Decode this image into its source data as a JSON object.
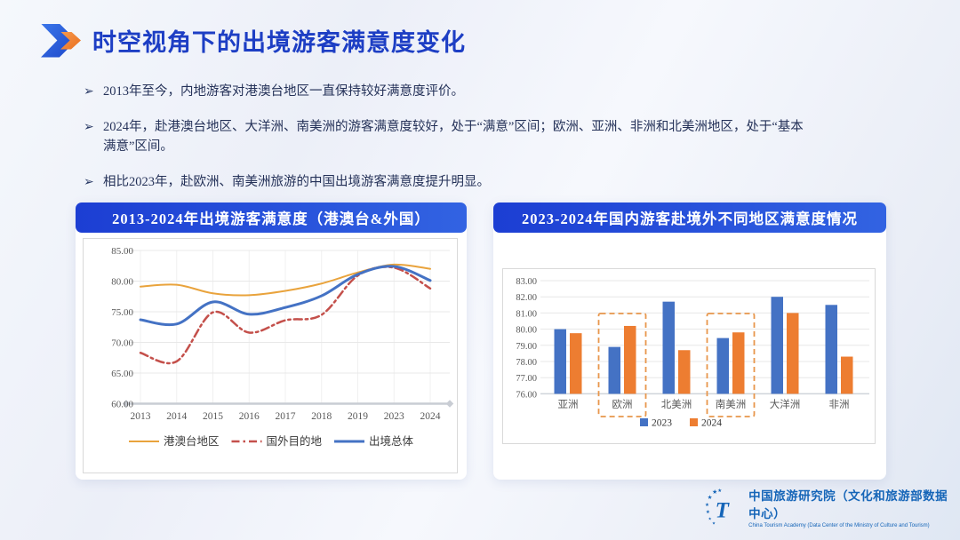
{
  "slide": {
    "title": "时空视角下的出境游客满意度变化",
    "bullets": [
      "2013年至今，内地游客对港澳台地区一直保持较好满意度评价。",
      "2024年，赴港澳台地区、大洋洲、南美洲的游客满意度较好，处于“满意”区间；欧洲、亚洲、非洲和北美洲地区，处于“基本满意”区间。",
      "相比2023年，赴欧洲、南美洲旅游的中国出境游客满意度提升明显。"
    ],
    "footer": {
      "org_cn": "中国旅游研究院（文化和旅游部数据中心）",
      "org_en": "China Tourism Academy (Data Center of the Ministry of Culture and Tourism)"
    }
  },
  "colors": {
    "header_gradient_start": "#1c3ed3",
    "header_gradient_end": "#3263e2",
    "title_text": "#1d3ec4",
    "body_text": "#243158",
    "highlight_dash": "#e8964b",
    "logo_blue": "#1565b8",
    "axis_text": "#595959"
  },
  "chart_data": [
    {
      "type": "line",
      "title": "2013-2024年出境游客满意度（港澳台&外国）",
      "x": [
        "2013",
        "2014",
        "2015",
        "2016",
        "2017",
        "2018",
        "2019",
        "2023",
        "2024"
      ],
      "series": [
        {
          "name": "港澳台地区",
          "color": "#E9A33C",
          "style": "solid",
          "width": 2,
          "values": [
            79.1,
            79.4,
            78.0,
            77.7,
            78.4,
            79.6,
            81.4,
            82.7,
            82.0
          ]
        },
        {
          "name": "国外目的地",
          "color": "#C4504B",
          "style": "dashdot",
          "width": 2.5,
          "values": [
            68.3,
            66.9,
            74.9,
            71.6,
            73.6,
            74.5,
            80.9,
            82.2,
            78.8
          ]
        },
        {
          "name": "出境总体",
          "color": "#4472C4",
          "style": "solid",
          "width": 3,
          "values": [
            73.7,
            73.0,
            76.6,
            74.6,
            75.7,
            77.6,
            81.1,
            82.4,
            80.1
          ]
        }
      ],
      "ylim": [
        60,
        85
      ],
      "ytick_step": 5,
      "grid": true,
      "legend_position": "bottom"
    },
    {
      "type": "bar",
      "title": "2023-2024年国内游客赴境外不同地区满意度情况",
      "categories": [
        "亚洲",
        "欧洲",
        "北美洲",
        "南美洲",
        "大洋洲",
        "非洲"
      ],
      "series": [
        {
          "name": "2023",
          "color": "#4472C4",
          "values": [
            80.0,
            78.9,
            81.7,
            79.45,
            82.0,
            81.5
          ]
        },
        {
          "name": "2024",
          "color": "#ED7D31",
          "values": [
            79.75,
            80.2,
            78.7,
            79.8,
            81.0,
            78.3
          ]
        }
      ],
      "ylim": [
        76,
        83
      ],
      "ytick_step": 1,
      "grid": true,
      "highlighted_categories": [
        "欧洲",
        "南美洲"
      ],
      "legend_position": "bottom"
    }
  ]
}
